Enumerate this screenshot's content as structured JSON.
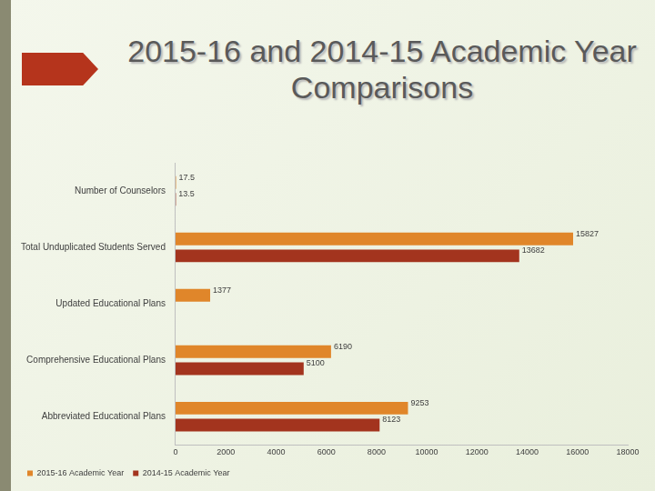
{
  "chart_data": {
    "type": "bar",
    "orientation": "horizontal",
    "title": "2015-16 and 2014-15 Academic Year Comparisons",
    "categories": [
      "Number of Counselors",
      "Total Unduplicated Students Served",
      "Updated Educational Plans",
      "Comprehensive Educational Plans",
      "Abbreviated Educational Plans"
    ],
    "series": [
      {
        "name": "2015-16 Academic Year",
        "color": "#e0862a",
        "values": [
          17.5,
          15827,
          1377,
          6190,
          9253
        ]
      },
      {
        "name": "2014-15 Academic Year",
        "color": "#a3341e",
        "values": [
          13.5,
          13682,
          null,
          5100,
          8123
        ]
      }
    ],
    "xlim": [
      0,
      18000
    ],
    "xticks": [
      0,
      2000,
      4000,
      6000,
      8000,
      10000,
      12000,
      14000,
      16000,
      18000
    ],
    "grid": false,
    "legend": "bottom",
    "data_labels": true
  }
}
